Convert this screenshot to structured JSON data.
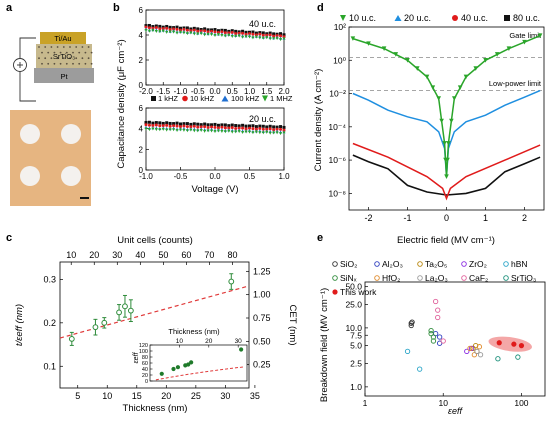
{
  "panels": {
    "a": {
      "letter": "a",
      "layers": [
        "Ti/Au",
        "SrTiO₃",
        "Pt"
      ],
      "colors": {
        "tiau": "#c9a227",
        "sto": "#c7b98d",
        "pt": "#9c9c9c",
        "substrate": "#e6b581",
        "pad": "#f4f1ee"
      }
    },
    "b": {
      "letter": "b",
      "ylabel": "Capacitance density (μF cm⁻²)",
      "xlabel": "Voltage (V)",
      "top": {
        "label": "40 u.c.",
        "xticks": [
          "-2.0",
          "-1.5",
          "-1.0",
          "-0.5",
          "0.0",
          "0.5",
          "1.0",
          "1.5",
          "2.0"
        ],
        "yticks": [
          "0",
          "2",
          "4",
          "6"
        ]
      },
      "bottom": {
        "label": "20 u.c.",
        "xticks": [
          "-1.0",
          "-0.5",
          "0.0",
          "0.5",
          "1.0"
        ],
        "yticks": [
          "0",
          "2",
          "4",
          "6"
        ]
      },
      "legend": [
        "1 kHZ",
        "10 kHZ",
        "100 kHZ",
        "1 MHZ"
      ],
      "colors": [
        "#111111",
        "#e01b1b",
        "#1f6fd1",
        "#2aa52a"
      ]
    },
    "c": {
      "letter": "c",
      "xlabel": "Thickness (nm)",
      "toplabel": "Unit cells (counts)",
      "ylabel_left": "t/εeff (nm)",
      "ylabel_right": "CET (nm)",
      "xticks": [
        "5",
        "10",
        "15",
        "20",
        "25",
        "30",
        "35"
      ],
      "topticks": [
        "10",
        "20",
        "30",
        "40",
        "50",
        "60",
        "70",
        "80"
      ],
      "yticks": [
        "0.1",
        "0.2",
        "0.3"
      ],
      "rticks": [
        "0.25",
        "0.50",
        "0.75",
        "1.00",
        "1.25"
      ],
      "inset": {
        "xlabel": "Thickness (nm)",
        "ylabel": "εeff",
        "xticks": [
          "10",
          "20",
          "30"
        ],
        "yticks": [
          "0",
          "20",
          "40",
          "60",
          "80",
          "100",
          "120"
        ]
      }
    },
    "d": {
      "letter": "d",
      "xlabel": "Electric field (MV cm⁻¹)",
      "ylabel": "Current density (A cm⁻²)",
      "xticks": [
        "-2",
        "-1",
        "0",
        "1",
        "2"
      ],
      "yticks": [
        "10⁻⁸",
        "10⁻⁶",
        "10⁻⁴",
        "10⁻²",
        "10⁰",
        "10²"
      ],
      "gate_limit": "Gate limit",
      "low_power_limit": "Low-power limit",
      "legend": [
        "10 u.c.",
        "20 u.c.",
        "40 u.c.",
        "80 u.c."
      ],
      "colors": [
        "#2aa52a",
        "#1f8fe0",
        "#e01b1b",
        "#111111"
      ]
    },
    "e": {
      "letter": "e",
      "xlabel": "εeff",
      "ylabel": "Breakdown field (MV cm⁻¹)",
      "xticks": [
        "1",
        "10",
        "100"
      ],
      "yticks": [
        "1.0",
        "2.5",
        "5.0",
        "7.5",
        "10.0",
        "25.0",
        "50.0"
      ],
      "legend": [
        {
          "label": "SiO₂",
          "color": "#333333"
        },
        {
          "label": "Al₂O₃",
          "color": "#2f3fbf"
        },
        {
          "label": "Ta₂O₅",
          "color": "#b8860b"
        },
        {
          "label": "ZrO₂",
          "color": "#8a2be2"
        },
        {
          "label": "hBN",
          "color": "#2aa5c8"
        },
        {
          "label": "SiNₓ",
          "color": "#2e8b3a"
        },
        {
          "label": "HfO₂",
          "color": "#e08a2a"
        },
        {
          "label": "La₂O₃",
          "color": "#9a9a9a"
        },
        {
          "label": "CaF₂",
          "color": "#e0609a"
        },
        {
          "label": "SrTiO₃",
          "color": "#1b8f7a"
        },
        {
          "label": "This work",
          "color": "#e01b1b"
        }
      ]
    }
  },
  "chart_data": [
    {
      "type": "scatter",
      "panel": "b-top",
      "label": "40 u.c.",
      "xlabel": "Voltage (V)",
      "ylabel": "Capacitance density (μF cm⁻²)",
      "xlim": [
        -2.0,
        2.0
      ],
      "ylim": [
        0,
        6
      ],
      "series": [
        {
          "name": "1 kHZ",
          "x": [
            -2.0,
            2.0
          ],
          "y": [
            4.75,
            4.05
          ]
        },
        {
          "name": "10 kHZ",
          "x": [
            -2.0,
            2.0
          ],
          "y": [
            4.6,
            3.9
          ]
        },
        {
          "name": "100 kHZ",
          "x": [
            -2.0,
            2.0
          ],
          "y": [
            4.45,
            3.75
          ]
        },
        {
          "name": "1 MHZ",
          "x": [
            -2.0,
            2.0
          ],
          "y": [
            4.35,
            3.65
          ]
        }
      ]
    },
    {
      "type": "scatter",
      "panel": "b-bottom",
      "label": "20 u.c.",
      "xlabel": "Voltage (V)",
      "ylabel": "Capacitance density (μF cm⁻²)",
      "xlim": [
        -1.0,
        1.0
      ],
      "ylim": [
        0,
        6
      ],
      "series": [
        {
          "name": "1 kHZ",
          "x": [
            -1.0,
            1.0
          ],
          "y": [
            4.6,
            4.15
          ]
        },
        {
          "name": "10 kHZ",
          "x": [
            -1.0,
            1.0
          ],
          "y": [
            4.35,
            3.9
          ]
        },
        {
          "name": "100 kHZ",
          "x": [
            -1.0,
            1.0
          ],
          "y": [
            4.1,
            3.7
          ]
        },
        {
          "name": "1 MHZ",
          "x": [
            -1.0,
            1.0
          ],
          "y": [
            3.95,
            3.55
          ]
        }
      ]
    },
    {
      "type": "scatter",
      "panel": "c",
      "xlabel": "Thickness (nm)",
      "ylabel": "t/εeff (nm)",
      "xlim": [
        2,
        34
      ],
      "ylim": [
        0.05,
        0.34
      ],
      "x": [
        4,
        8,
        9.5,
        12,
        13,
        14,
        31
      ],
      "y": [
        0.163,
        0.19,
        0.2,
        0.224,
        0.238,
        0.228,
        0.295
      ],
      "yerr": [
        0.015,
        0.018,
        0.012,
        0.018,
        0.025,
        0.025,
        0.018
      ]
    },
    {
      "type": "scatter",
      "panel": "c-inset",
      "xlabel": "Thickness (nm)",
      "ylabel": "εeff",
      "xlim": [
        0,
        33
      ],
      "ylim": [
        0,
        120
      ],
      "x": [
        4,
        8,
        9.5,
        12,
        13,
        14,
        31
      ],
      "y": [
        24,
        40,
        46,
        52,
        55,
        62,
        105
      ]
    },
    {
      "type": "line",
      "panel": "d",
      "xlabel": "Electric field (MV cm⁻¹)",
      "ylabel": "Current density (A cm⁻²)",
      "ylog": true,
      "xlim": [
        -2.5,
        2.5
      ],
      "ylim": [
        1e-09,
        100.0
      ],
      "series": [
        {
          "name": "10 u.c.",
          "x": [
            -2.4,
            -1.6,
            -1.0,
            -0.5,
            -0.2,
            -0.05,
            0,
            0.05,
            0.2,
            0.5,
            1.0,
            1.6,
            2.4
          ],
          "y": [
            20,
            5,
            1,
            0.1,
            0.005,
            1e-05,
            1e-07,
            1e-05,
            0.005,
            0.1,
            1,
            5,
            30
          ]
        },
        {
          "name": "20 u.c.",
          "x": [
            -2.4,
            -2.0,
            -1.5,
            -1.0,
            -0.5,
            -0.2,
            -0.05,
            0,
            0.05,
            0.2,
            0.5,
            1.0,
            1.5,
            2.0,
            2.4
          ],
          "y": [
            0.01,
            0.004,
            0.001,
            0.0004,
            0.0002,
            5e-05,
            5e-06,
            1e-07,
            5e-06,
            5e-05,
            0.0002,
            0.0005,
            0.002,
            0.006,
            0.015
          ]
        },
        {
          "name": "40 u.c.",
          "x": [
            -2.4,
            -1.5,
            -0.5,
            -0.1,
            0,
            0.1,
            0.5,
            1.5,
            2.4
          ],
          "y": [
            1e-05,
            1.5e-06,
            1e-07,
            2e-08,
            5e-09,
            2e-08,
            1e-07,
            1e-06,
            8e-06
          ]
        },
        {
          "name": "80 u.c.",
          "x": [
            -2.4,
            -2.0,
            -1.5,
            -1.0,
            -0.5,
            0,
            0.5,
            1.0,
            1.5,
            2.0,
            2.4
          ],
          "y": [
            2e-06,
            8e-07,
            3e-07,
            3e-08,
            1.2e-08,
            8e-09,
            1e-08,
            2e-08,
            2e-07,
            6e-07,
            1.5e-06
          ]
        }
      ],
      "annotations": [
        {
          "text": "Gate limit",
          "y": 1.5
        },
        {
          "text": "Low-power limit",
          "y": 0.015
        }
      ]
    },
    {
      "type": "scatter",
      "panel": "e",
      "xlabel": "εeff",
      "ylabel": "Breakdown field (MV cm⁻¹)",
      "xlog": true,
      "ylog": true,
      "xlim": [
        1,
        200
      ],
      "ylim": [
        0.7,
        60
      ],
      "series": [
        {
          "name": "SiO₂",
          "x": [
            3.9,
            3.9,
            4.0
          ],
          "y": [
            12,
            11,
            12.5
          ]
        },
        {
          "name": "Al₂O₃",
          "x": [
            8,
            9,
            9
          ],
          "y": [
            8,
            7,
            5.5
          ]
        },
        {
          "name": "Ta₂O₅",
          "x": [
            24,
            26
          ],
          "y": [
            4.5,
            5
          ]
        },
        {
          "name": "ZrO₂",
          "x": [
            20,
            23
          ],
          "y": [
            4,
            4.5
          ]
        },
        {
          "name": "hBN",
          "x": [
            3.5,
            5
          ],
          "y": [
            4,
            2
          ]
        },
        {
          "name": "SiNₓ",
          "x": [
            7,
            7,
            7.5,
            7.5
          ],
          "y": [
            8,
            9,
            6,
            7
          ]
        },
        {
          "name": "HfO₂",
          "x": [
            22,
            25,
            27,
            29
          ],
          "y": [
            4.5,
            3.5,
            4,
            4.8
          ]
        },
        {
          "name": "La₂O₃",
          "x": [
            27,
            30
          ],
          "y": [
            4,
            3.5
          ]
        },
        {
          "name": "CaF₂",
          "x": [
            8,
            8.5,
            8.5,
            10
          ],
          "y": [
            28,
            20,
            15,
            6
          ]
        },
        {
          "name": "SrTiO₃",
          "x": [
            50,
            90
          ],
          "y": [
            3,
            3.2
          ]
        },
        {
          "name": "This work",
          "x": [
            52,
            80,
            100
          ],
          "y": [
            5.6,
            5.3,
            5.0
          ]
        }
      ]
    }
  ]
}
